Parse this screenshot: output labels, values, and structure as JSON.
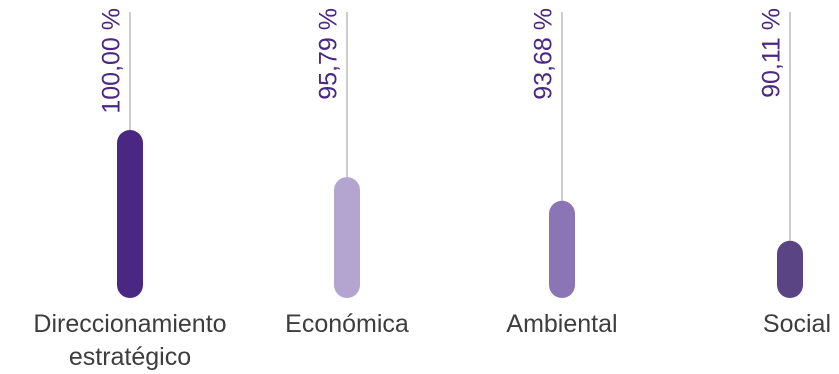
{
  "chart_data": {
    "type": "bar",
    "categories": [
      {
        "lines": [
          "Direccionamiento",
          "estratégico"
        ]
      },
      {
        "lines": [
          "Económica"
        ]
      },
      {
        "lines": [
          "Ambiental"
        ]
      },
      {
        "lines": [
          "Social"
        ]
      }
    ],
    "values": [
      100.0,
      95.79,
      93.68,
      90.11
    ],
    "data_labels": [
      "100,00 %",
      "95,79 %",
      "93,68 %",
      "90,11 %"
    ],
    "colors": [
      "#4a2783",
      "#b3a5cf",
      "#8c75b5",
      "#5b4483"
    ],
    "label_color": "#4a2783",
    "leader_color": "#9a9a9a",
    "title": "",
    "xlabel": "",
    "ylabel": "",
    "ylim": [
      85,
      100
    ],
    "grid": false,
    "legend": "none"
  }
}
